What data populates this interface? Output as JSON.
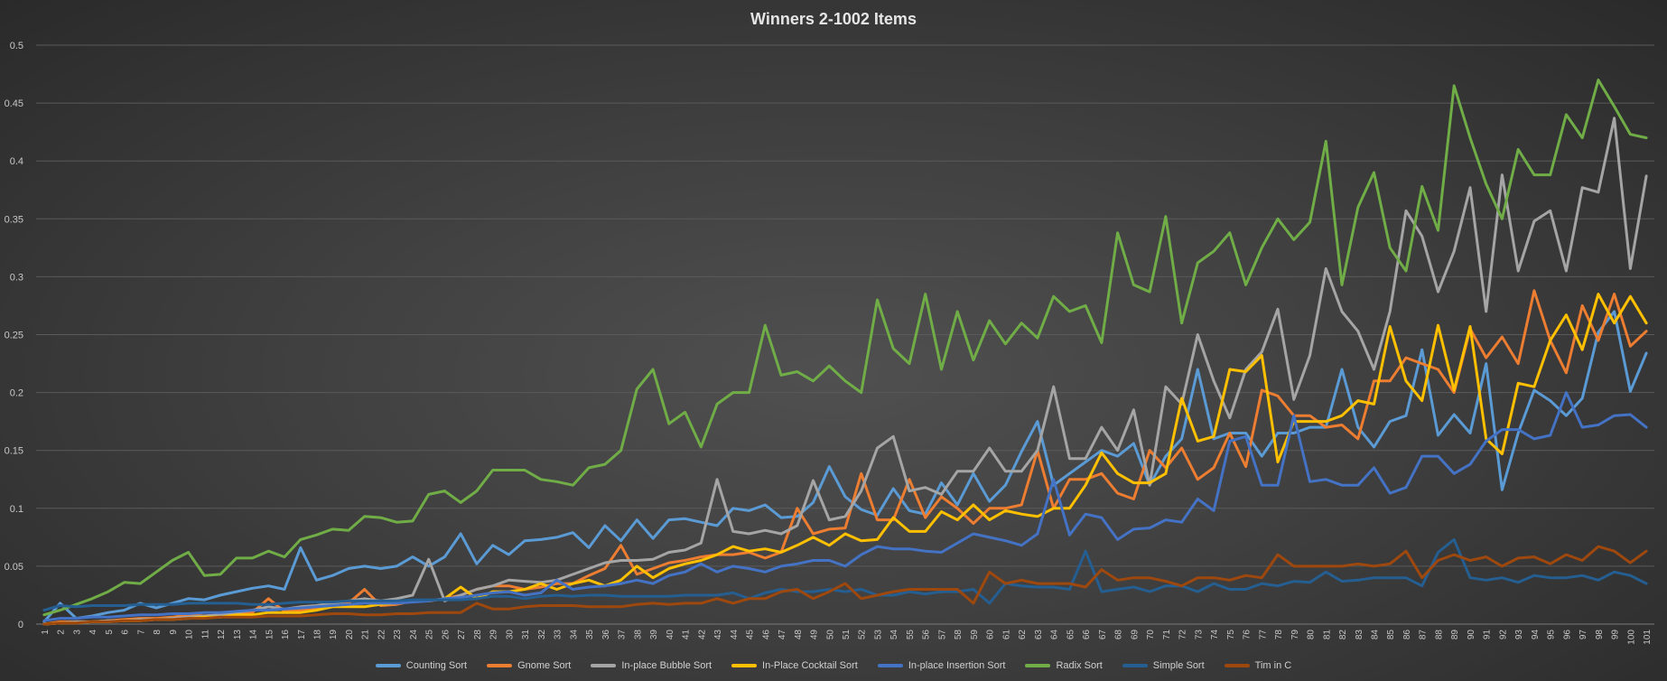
{
  "chart_data": {
    "type": "line",
    "title": "Winners 2-1002 Items",
    "xlabel": "",
    "ylabel": "",
    "ylim": [
      0,
      0.5
    ],
    "yticks": [
      "0",
      "0.05",
      "0.1",
      "0.15",
      "0.2",
      "0.25",
      "0.3",
      "0.35",
      "0.4",
      "0.45",
      "0.5"
    ],
    "grid": true,
    "legend_position": "bottom",
    "x": [
      1,
      2,
      3,
      4,
      5,
      6,
      7,
      8,
      9,
      10,
      11,
      12,
      13,
      14,
      15,
      16,
      17,
      18,
      19,
      20,
      21,
      22,
      23,
      24,
      25,
      26,
      27,
      28,
      29,
      30,
      31,
      32,
      33,
      34,
      35,
      36,
      37,
      38,
      39,
      40,
      41,
      42,
      43,
      44,
      45,
      46,
      47,
      48,
      49,
      50,
      51,
      52,
      53,
      54,
      55,
      56,
      57,
      58,
      59,
      60,
      61,
      62,
      63,
      64,
      65,
      66,
      67,
      68,
      69,
      70,
      71,
      72,
      73,
      74,
      75,
      76,
      77,
      78,
      79,
      80,
      81,
      82,
      83,
      84,
      85,
      86,
      87,
      88,
      89,
      90,
      91,
      92,
      93,
      94,
      95,
      96,
      97,
      98,
      99,
      100,
      101
    ],
    "series": [
      {
        "name": "Counting Sort",
        "color": "#5b9bd5",
        "values": [
          0.002,
          0.018,
          0.005,
          0.007,
          0.01,
          0.012,
          0.018,
          0.014,
          0.018,
          0.022,
          0.021,
          0.025,
          0.028,
          0.031,
          0.033,
          0.03,
          0.066,
          0.038,
          0.042,
          0.048,
          0.05,
          0.048,
          0.05,
          0.058,
          0.05,
          0.058,
          0.078,
          0.052,
          0.068,
          0.06,
          0.072,
          0.073,
          0.075,
          0.079,
          0.066,
          0.085,
          0.072,
          0.09,
          0.074,
          0.09,
          0.091,
          0.088,
          0.085,
          0.1,
          0.098,
          0.103,
          0.092,
          0.093,
          0.105,
          0.136,
          0.11,
          0.099,
          0.094,
          0.117,
          0.098,
          0.095,
          0.122,
          0.103,
          0.13,
          0.106,
          0.12,
          0.149,
          0.175,
          0.12,
          0.13,
          0.14,
          0.15,
          0.145,
          0.156,
          0.12,
          0.145,
          0.16,
          0.22,
          0.16,
          0.165,
          0.165,
          0.145,
          0.165,
          0.165,
          0.17,
          0.17,
          0.22,
          0.17,
          0.153,
          0.175,
          0.18,
          0.237,
          0.163,
          0.181,
          0.165,
          0.225,
          0.116,
          0.165,
          0.202,
          0.193,
          0.18,
          0.195,
          0.252,
          0.27,
          0.201,
          0.234
        ]
      },
      {
        "name": "Gnome Sort",
        "color": "#ed7d31",
        "values": [
          0.0,
          0.002,
          0.002,
          0.002,
          0.003,
          0.004,
          0.005,
          0.005,
          0.006,
          0.008,
          0.007,
          0.008,
          0.008,
          0.01,
          0.022,
          0.011,
          0.012,
          0.013,
          0.015,
          0.018,
          0.03,
          0.016,
          0.017,
          0.02,
          0.02,
          0.022,
          0.025,
          0.03,
          0.033,
          0.033,
          0.03,
          0.032,
          0.035,
          0.035,
          0.042,
          0.048,
          0.068,
          0.043,
          0.048,
          0.053,
          0.055,
          0.058,
          0.06,
          0.06,
          0.062,
          0.057,
          0.062,
          0.1,
          0.078,
          0.082,
          0.083,
          0.13,
          0.09,
          0.09,
          0.125,
          0.092,
          0.11,
          0.1,
          0.087,
          0.1,
          0.1,
          0.103,
          0.15,
          0.1,
          0.125,
          0.125,
          0.13,
          0.113,
          0.108,
          0.15,
          0.135,
          0.152,
          0.125,
          0.135,
          0.165,
          0.136,
          0.202,
          0.197,
          0.18,
          0.18,
          0.17,
          0.172,
          0.16,
          0.21,
          0.21,
          0.23,
          0.225,
          0.22,
          0.2,
          0.255,
          0.23,
          0.248,
          0.225,
          0.288,
          0.245,
          0.217,
          0.275,
          0.245,
          0.285,
          0.24,
          0.253
        ]
      },
      {
        "name": "In-place Bubble Sort",
        "color": "#a5a5a5",
        "values": [
          0.0,
          0.001,
          0.002,
          0.002,
          0.003,
          0.003,
          0.004,
          0.004,
          0.005,
          0.006,
          0.007,
          0.008,
          0.01,
          0.012,
          0.015,
          0.013,
          0.015,
          0.016,
          0.018,
          0.02,
          0.022,
          0.02,
          0.022,
          0.025,
          0.056,
          0.02,
          0.025,
          0.03,
          0.033,
          0.038,
          0.037,
          0.036,
          0.038,
          0.043,
          0.048,
          0.053,
          0.055,
          0.055,
          0.056,
          0.062,
          0.064,
          0.07,
          0.125,
          0.08,
          0.078,
          0.081,
          0.078,
          0.085,
          0.124,
          0.09,
          0.093,
          0.115,
          0.152,
          0.162,
          0.115,
          0.118,
          0.112,
          0.132,
          0.132,
          0.152,
          0.132,
          0.132,
          0.15,
          0.205,
          0.143,
          0.143,
          0.17,
          0.15,
          0.185,
          0.12,
          0.205,
          0.19,
          0.25,
          0.21,
          0.178,
          0.22,
          0.235,
          0.272,
          0.194,
          0.232,
          0.307,
          0.27,
          0.253,
          0.22,
          0.27,
          0.357,
          0.335,
          0.287,
          0.322,
          0.377,
          0.27,
          0.388,
          0.305,
          0.348,
          0.357,
          0.305,
          0.377,
          0.373,
          0.437,
          0.307,
          0.387
        ]
      },
      {
        "name": "In-Place Cocktail Sort",
        "color": "#ffc000",
        "values": [
          0.0,
          0.001,
          0.001,
          0.002,
          0.002,
          0.003,
          0.003,
          0.004,
          0.004,
          0.005,
          0.006,
          0.006,
          0.008,
          0.008,
          0.01,
          0.01,
          0.01,
          0.012,
          0.015,
          0.015,
          0.015,
          0.017,
          0.018,
          0.02,
          0.02,
          0.022,
          0.032,
          0.022,
          0.028,
          0.028,
          0.03,
          0.035,
          0.03,
          0.035,
          0.038,
          0.033,
          0.038,
          0.05,
          0.04,
          0.048,
          0.052,
          0.055,
          0.06,
          0.067,
          0.063,
          0.065,
          0.062,
          0.068,
          0.075,
          0.068,
          0.078,
          0.072,
          0.073,
          0.092,
          0.08,
          0.08,
          0.097,
          0.09,
          0.103,
          0.09,
          0.098,
          0.095,
          0.093,
          0.1,
          0.1,
          0.12,
          0.148,
          0.13,
          0.122,
          0.122,
          0.13,
          0.195,
          0.158,
          0.162,
          0.22,
          0.218,
          0.232,
          0.14,
          0.175,
          0.175,
          0.175,
          0.18,
          0.193,
          0.19,
          0.257,
          0.21,
          0.193,
          0.258,
          0.202,
          0.257,
          0.16,
          0.147,
          0.208,
          0.205,
          0.245,
          0.267,
          0.237,
          0.285,
          0.26,
          0.283,
          0.26
        ]
      },
      {
        "name": "In-place Insertion Sort",
        "color": "#4472c4",
        "values": [
          0.003,
          0.005,
          0.005,
          0.006,
          0.006,
          0.007,
          0.008,
          0.008,
          0.009,
          0.009,
          0.01,
          0.01,
          0.011,
          0.012,
          0.012,
          0.013,
          0.014,
          0.015,
          0.016,
          0.017,
          0.018,
          0.018,
          0.018,
          0.019,
          0.02,
          0.022,
          0.023,
          0.025,
          0.027,
          0.028,
          0.025,
          0.027,
          0.038,
          0.03,
          0.032,
          0.033,
          0.035,
          0.038,
          0.035,
          0.042,
          0.045,
          0.052,
          0.045,
          0.05,
          0.048,
          0.045,
          0.05,
          0.052,
          0.055,
          0.055,
          0.05,
          0.06,
          0.067,
          0.065,
          0.065,
          0.063,
          0.062,
          0.07,
          0.078,
          0.075,
          0.072,
          0.068,
          0.078,
          0.125,
          0.077,
          0.095,
          0.092,
          0.073,
          0.082,
          0.083,
          0.09,
          0.088,
          0.108,
          0.098,
          0.158,
          0.162,
          0.12,
          0.12,
          0.18,
          0.123,
          0.125,
          0.12,
          0.12,
          0.135,
          0.113,
          0.118,
          0.145,
          0.145,
          0.13,
          0.138,
          0.158,
          0.168,
          0.168,
          0.16,
          0.163,
          0.2,
          0.17,
          0.172,
          0.18,
          0.181,
          0.17
        ]
      },
      {
        "name": "Radix Sort",
        "color": "#70ad47",
        "values": [
          0.008,
          0.012,
          0.017,
          0.022,
          0.028,
          0.036,
          0.035,
          0.045,
          0.055,
          0.062,
          0.042,
          0.043,
          0.057,
          0.057,
          0.063,
          0.058,
          0.073,
          0.077,
          0.082,
          0.081,
          0.093,
          0.092,
          0.088,
          0.089,
          0.112,
          0.115,
          0.105,
          0.115,
          0.133,
          0.133,
          0.133,
          0.125,
          0.123,
          0.12,
          0.135,
          0.138,
          0.15,
          0.203,
          0.22,
          0.173,
          0.183,
          0.153,
          0.19,
          0.2,
          0.2,
          0.258,
          0.215,
          0.218,
          0.21,
          0.223,
          0.21,
          0.2,
          0.28,
          0.238,
          0.225,
          0.285,
          0.22,
          0.27,
          0.228,
          0.262,
          0.242,
          0.26,
          0.247,
          0.283,
          0.27,
          0.275,
          0.243,
          0.338,
          0.293,
          0.287,
          0.352,
          0.26,
          0.312,
          0.322,
          0.338,
          0.293,
          0.325,
          0.35,
          0.332,
          0.347,
          0.417,
          0.293,
          0.36,
          0.39,
          0.325,
          0.305,
          0.378,
          0.34,
          0.465,
          0.42,
          0.38,
          0.35,
          0.41,
          0.388,
          0.388,
          0.44,
          0.42,
          0.47,
          0.447,
          0.423,
          0.42
        ]
      },
      {
        "name": "Simple Sort",
        "color": "#255e91",
        "values": [
          0.012,
          0.016,
          0.015,
          0.016,
          0.016,
          0.016,
          0.017,
          0.017,
          0.017,
          0.018,
          0.018,
          0.018,
          0.018,
          0.017,
          0.017,
          0.018,
          0.019,
          0.019,
          0.019,
          0.02,
          0.02,
          0.02,
          0.02,
          0.021,
          0.021,
          0.021,
          0.021,
          0.022,
          0.024,
          0.024,
          0.022,
          0.024,
          0.025,
          0.024,
          0.025,
          0.025,
          0.024,
          0.024,
          0.024,
          0.024,
          0.025,
          0.025,
          0.025,
          0.027,
          0.022,
          0.027,
          0.03,
          0.028,
          0.028,
          0.03,
          0.028,
          0.03,
          0.025,
          0.025,
          0.028,
          0.026,
          0.028,
          0.028,
          0.03,
          0.018,
          0.035,
          0.033,
          0.032,
          0.032,
          0.03,
          0.063,
          0.028,
          0.03,
          0.032,
          0.028,
          0.033,
          0.033,
          0.028,
          0.035,
          0.03,
          0.03,
          0.035,
          0.033,
          0.037,
          0.036,
          0.045,
          0.037,
          0.038,
          0.04,
          0.04,
          0.04,
          0.033,
          0.062,
          0.073,
          0.04,
          0.038,
          0.04,
          0.036,
          0.042,
          0.04,
          0.04,
          0.042,
          0.038,
          0.045,
          0.042,
          0.035
        ]
      },
      {
        "name": "Tim in C",
        "color": "#9e480e",
        "values": [
          0.0,
          0.001,
          0.001,
          0.002,
          0.002,
          0.003,
          0.003,
          0.004,
          0.004,
          0.005,
          0.005,
          0.006,
          0.006,
          0.006,
          0.007,
          0.007,
          0.007,
          0.008,
          0.009,
          0.009,
          0.008,
          0.008,
          0.009,
          0.009,
          0.01,
          0.01,
          0.01,
          0.018,
          0.013,
          0.013,
          0.015,
          0.016,
          0.016,
          0.016,
          0.015,
          0.015,
          0.015,
          0.017,
          0.018,
          0.017,
          0.018,
          0.018,
          0.022,
          0.018,
          0.022,
          0.022,
          0.028,
          0.03,
          0.022,
          0.028,
          0.035,
          0.022,
          0.025,
          0.028,
          0.03,
          0.03,
          0.03,
          0.03,
          0.018,
          0.045,
          0.035,
          0.038,
          0.035,
          0.035,
          0.035,
          0.032,
          0.047,
          0.038,
          0.04,
          0.04,
          0.037,
          0.033,
          0.04,
          0.04,
          0.038,
          0.042,
          0.04,
          0.06,
          0.05,
          0.05,
          0.05,
          0.05,
          0.052,
          0.05,
          0.052,
          0.063,
          0.04,
          0.055,
          0.06,
          0.055,
          0.058,
          0.05,
          0.057,
          0.058,
          0.052,
          0.06,
          0.055,
          0.067,
          0.063,
          0.053,
          0.063
        ]
      }
    ]
  }
}
